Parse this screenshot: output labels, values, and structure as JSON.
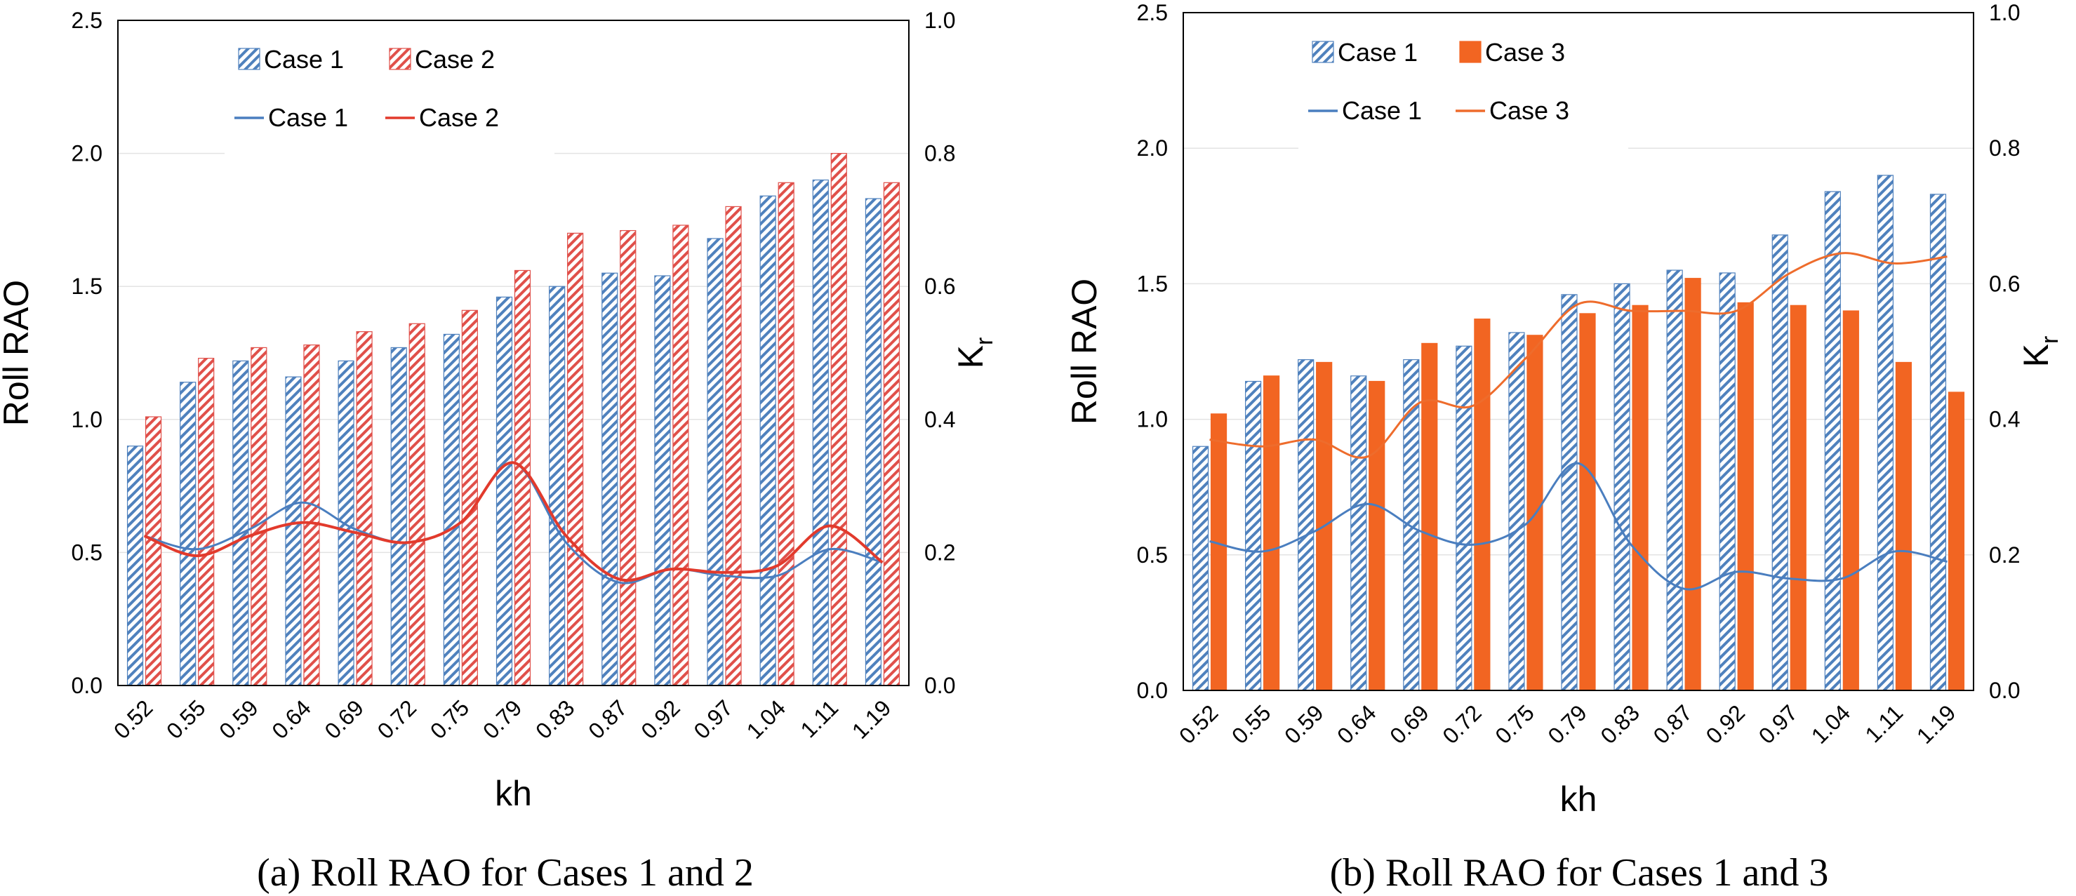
{
  "colors": {
    "case1_bar": "#4f81bd",
    "case2_bar": "#e0504a",
    "case3_bar": "#f26522",
    "case1_line": "#4a7ebf",
    "case2_line": "#e23a2c",
    "case3_line": "#ee6c2c"
  },
  "chart_data": [
    {
      "type": "bar",
      "caption": "(a) Roll RAO for Cases 1 and 2",
      "xlabel": "kh",
      "ylabel": "Roll RAO",
      "y2label": "K",
      "y2label_sub": "r",
      "categories": [
        "0.52",
        "0.55",
        "0.59",
        "0.64",
        "0.69",
        "0.72",
        "0.75",
        "0.79",
        "0.83",
        "0.87",
        "0.92",
        "0.97",
        "1.04",
        "1.11",
        "1.19"
      ],
      "ylim": [
        0,
        2.5
      ],
      "yticks": [
        "0.0",
        "0.5",
        "1.0",
        "1.5",
        "2.0",
        "2.5"
      ],
      "y2lim": [
        0,
        1.0
      ],
      "y2ticks": [
        "0.0",
        "0.2",
        "0.4",
        "0.6",
        "0.8",
        "1.0"
      ],
      "grid": true,
      "legend_position": "top-left",
      "series": [
        {
          "name": "Case 1",
          "kind": "bar",
          "style": "hatched",
          "color_key": "case1_bar",
          "values": [
            0.9,
            1.14,
            1.22,
            1.16,
            1.22,
            1.27,
            1.32,
            1.46,
            1.5,
            1.55,
            1.54,
            1.68,
            1.84,
            1.9,
            1.83
          ]
        },
        {
          "name": "Case 2",
          "kind": "bar",
          "style": "hatched",
          "color_key": "case2_bar",
          "values": [
            1.01,
            1.23,
            1.27,
            1.28,
            1.33,
            1.36,
            1.41,
            1.56,
            1.7,
            1.71,
            1.73,
            1.8,
            1.89,
            2.0,
            1.89
          ]
        },
        {
          "name": "Case 1",
          "kind": "line",
          "axis": "y2",
          "color_key": "case1_line",
          "values": [
            0.225,
            0.205,
            0.235,
            0.275,
            0.235,
            0.215,
            0.245,
            0.335,
            0.215,
            0.155,
            0.175,
            0.165,
            0.165,
            0.205,
            0.185
          ]
        },
        {
          "name": "Case 2",
          "kind": "line",
          "axis": "y2",
          "color_key": "case2_line",
          "values": [
            0.225,
            0.195,
            0.225,
            0.245,
            0.23,
            0.215,
            0.245,
            0.335,
            0.225,
            0.16,
            0.175,
            0.17,
            0.18,
            0.24,
            0.185
          ]
        }
      ]
    },
    {
      "type": "bar",
      "caption": "(b) Roll RAO for Cases 1 and 3",
      "xlabel": "kh",
      "ylabel": "Roll RAO",
      "y2label": "K",
      "y2label_sub": "r",
      "categories": [
        "0.52",
        "0.55",
        "0.59",
        "0.64",
        "0.69",
        "0.72",
        "0.75",
        "0.79",
        "0.83",
        "0.87",
        "0.92",
        "0.97",
        "1.04",
        "1.11",
        "1.19"
      ],
      "ylim": [
        0,
        2.5
      ],
      "yticks": [
        "0.0",
        "0.5",
        "1.0",
        "1.5",
        "2.0",
        "2.5"
      ],
      "y2lim": [
        0,
        1.0
      ],
      "y2ticks": [
        "0.0",
        "0.2",
        "0.4",
        "0.6",
        "0.8",
        "1.0"
      ],
      "grid": true,
      "legend_position": "top-left",
      "series": [
        {
          "name": "Case 1",
          "kind": "bar",
          "style": "hatched",
          "color_key": "case1_bar",
          "values": [
            0.9,
            1.14,
            1.22,
            1.16,
            1.22,
            1.27,
            1.32,
            1.46,
            1.5,
            1.55,
            1.54,
            1.68,
            1.84,
            1.9,
            1.83
          ]
        },
        {
          "name": "Case 3",
          "kind": "bar",
          "style": "solid",
          "color_key": "case3_bar",
          "values": [
            1.02,
            1.16,
            1.21,
            1.14,
            1.28,
            1.37,
            1.31,
            1.39,
            1.42,
            1.52,
            1.43,
            1.42,
            1.4,
            1.21,
            1.1
          ]
        },
        {
          "name": "Case 1",
          "kind": "line",
          "axis": "y2",
          "color_key": "case1_line",
          "values": [
            0.22,
            0.205,
            0.235,
            0.275,
            0.235,
            0.215,
            0.245,
            0.335,
            0.215,
            0.15,
            0.175,
            0.165,
            0.165,
            0.205,
            0.19
          ]
        },
        {
          "name": "Case 3",
          "kind": "line",
          "axis": "y2",
          "color_key": "case3_line",
          "values": [
            0.37,
            0.36,
            0.37,
            0.345,
            0.425,
            0.42,
            0.49,
            0.57,
            0.56,
            0.56,
            0.56,
            0.615,
            0.645,
            0.63,
            0.64
          ]
        }
      ]
    }
  ]
}
